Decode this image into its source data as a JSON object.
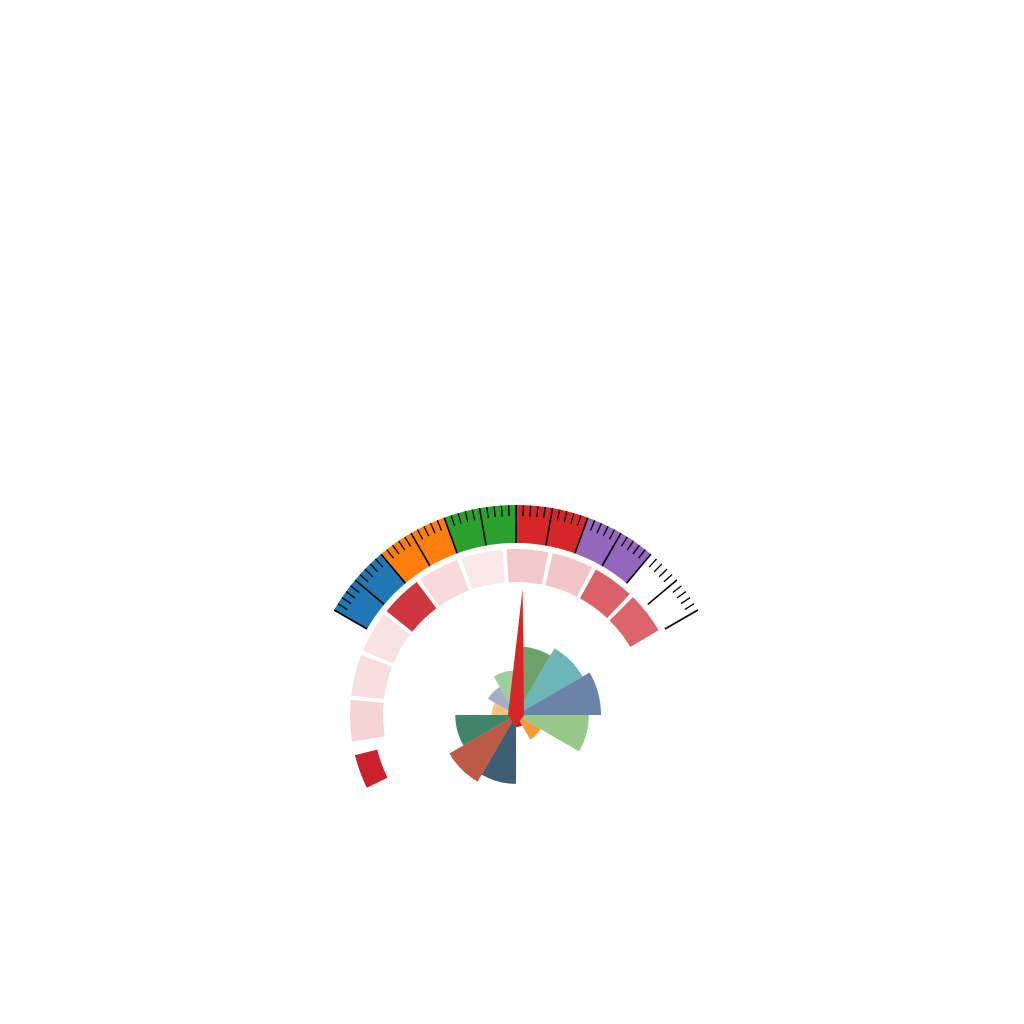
{
  "chart_data": {
    "type": "gauge",
    "title": "",
    "grid": false,
    "legend": "none",
    "gauge": {
      "start_deg": -60,
      "end_deg": 60,
      "bands": [
        {
          "from": 0,
          "to": 20,
          "color": "#1f77b4"
        },
        {
          "from": 20,
          "to": 40,
          "color": "#ff7f0e"
        },
        {
          "from": 40,
          "to": 60,
          "color": "#2ca02c"
        },
        {
          "from": 60,
          "to": 80,
          "color": "#d62728"
        },
        {
          "from": 80,
          "to": 100,
          "color": "#9467bd"
        },
        {
          "from": 100,
          "to": 120,
          "color": "#ffffff"
        }
      ],
      "major_tick_step": 10,
      "minor_tick_step": 2,
      "needle_value": 63,
      "needle_color": "#d62728"
    },
    "ring": {
      "start_deg": -100,
      "segment_span_deg": 16,
      "gap_deg": 1.5,
      "values": [
        15,
        10,
        8,
        90,
        12,
        5,
        20,
        22,
        70,
        68
      ],
      "color_low": "#fdf3f1",
      "color_high": "#c9222c",
      "outlier": {
        "angle_deg": -110,
        "value": 100
      }
    },
    "rose": {
      "start_deg": 0,
      "sector_deg": 30,
      "values": [
        85,
        95,
        105,
        90,
        35,
        15,
        85,
        95,
        75,
        30,
        40,
        55
      ],
      "colors": [
        "#6fa26b",
        "#6cb6b8",
        "#6b83a8",
        "#96c98a",
        "#f59a3a",
        "#a52825",
        "#3e5f73",
        "#bd5a45",
        "#40856a",
        "#f7c27a",
        "#a3aec4",
        "#9fcf9c"
      ],
      "max": 105
    }
  }
}
